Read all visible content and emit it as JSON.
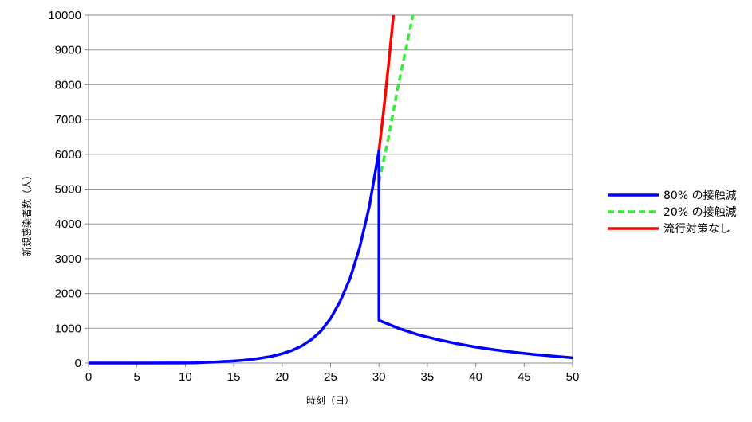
{
  "chart_data": {
    "type": "line",
    "xlabel": "時刻（日）",
    "ylabel": "新規感染者数（人）",
    "xlim": [
      0,
      50
    ],
    "ylim": [
      0,
      10000
    ],
    "x_ticks": [
      0,
      5,
      10,
      15,
      20,
      25,
      30,
      35,
      40,
      45,
      50
    ],
    "y_ticks": [
      0,
      1000,
      2000,
      3000,
      4000,
      5000,
      6000,
      7000,
      8000,
      9000,
      10000
    ],
    "grid": "horizontal",
    "legend_position": "right",
    "series": [
      {
        "name": "80% の接触減",
        "color": "#0000ff",
        "style": "solid",
        "points": [
          [
            0,
            0
          ],
          [
            5,
            0
          ],
          [
            10,
            2
          ],
          [
            11,
            5
          ],
          [
            12,
            20
          ],
          [
            13,
            30
          ],
          [
            14,
            45
          ],
          [
            15,
            60
          ],
          [
            16,
            80
          ],
          [
            17,
            110
          ],
          [
            18,
            150
          ],
          [
            19,
            200
          ],
          [
            20,
            270
          ],
          [
            21,
            360
          ],
          [
            22,
            490
          ],
          [
            23,
            670
          ],
          [
            24,
            920
          ],
          [
            25,
            1280
          ],
          [
            26,
            1780
          ],
          [
            27,
            2420
          ],
          [
            28,
            3310
          ],
          [
            29,
            4500
          ],
          [
            30,
            6100
          ],
          [
            30,
            1230
          ],
          [
            32,
            1000
          ],
          [
            34,
            820
          ],
          [
            36,
            680
          ],
          [
            38,
            560
          ],
          [
            40,
            460
          ],
          [
            42,
            380
          ],
          [
            44,
            310
          ],
          [
            46,
            250
          ],
          [
            48,
            200
          ],
          [
            50,
            150
          ]
        ]
      },
      {
        "name": "20% の接触減",
        "color": "#33ee33",
        "style": "dashed",
        "points": [
          [
            30,
            5200
          ],
          [
            31,
            6500
          ],
          [
            32,
            8000
          ],
          [
            33,
            9300
          ],
          [
            33.5,
            10000
          ]
        ]
      },
      {
        "name": "流行対策なし",
        "color": "#ff0000",
        "style": "solid",
        "points": [
          [
            30,
            6100
          ],
          [
            30.5,
            7300
          ],
          [
            31,
            8600
          ],
          [
            31.5,
            10000
          ]
        ]
      }
    ]
  }
}
